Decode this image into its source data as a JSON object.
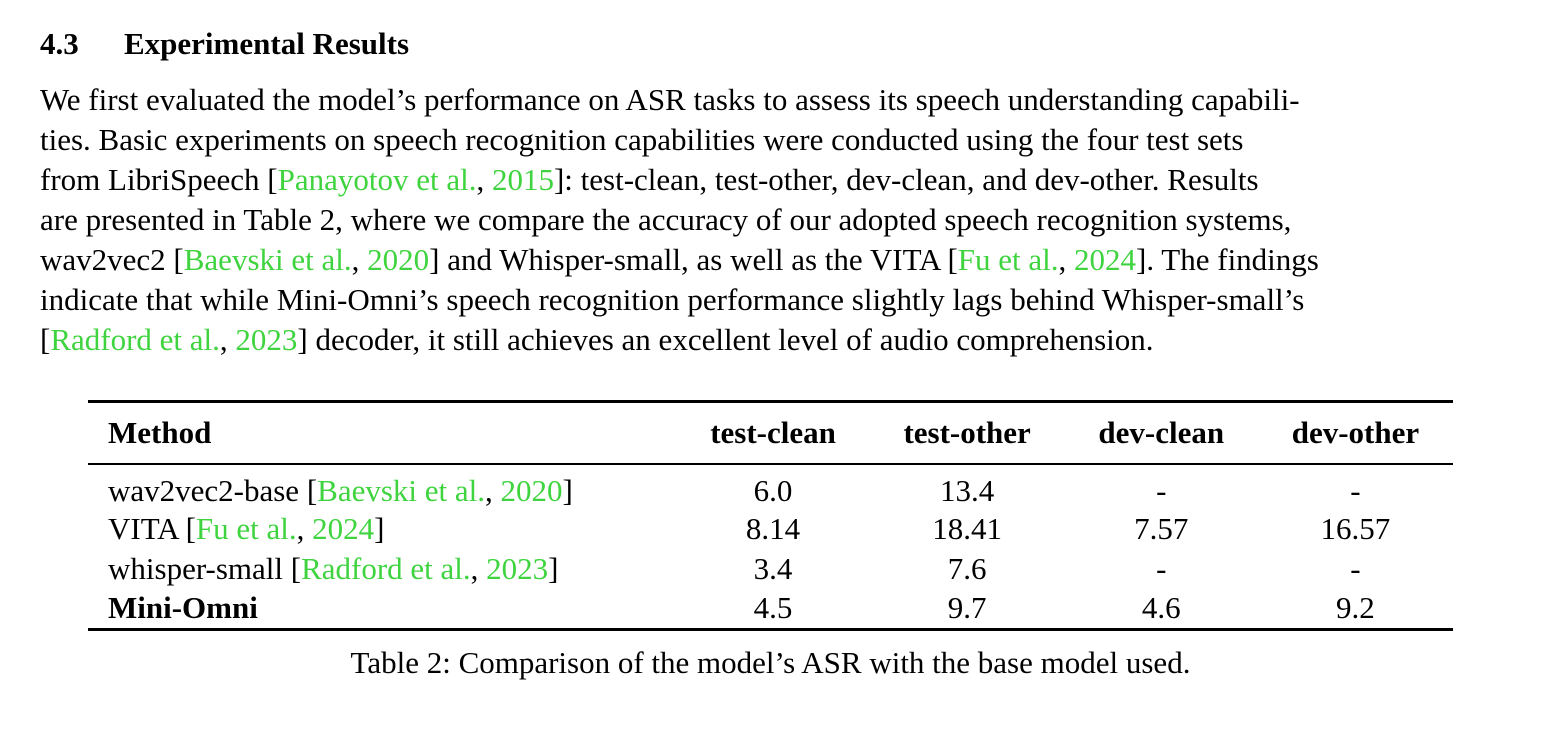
{
  "section": {
    "number": "4.3",
    "title": "Experimental Results"
  },
  "paragraph": [
    [
      {
        "t": "We first evaluated the model’s performance on ASR tasks to assess its speech understanding capabili-"
      }
    ],
    [
      {
        "t": "ties. Basic experiments on speech recognition capabilities were conducted using the four test sets"
      }
    ],
    [
      {
        "t": "from LibriSpeech ["
      },
      {
        "t": "Panayotov et al.",
        "c": 1
      },
      {
        "t": ", "
      },
      {
        "t": "2015",
        "c": 1
      },
      {
        "t": "]: test-clean, test-other, dev-clean, and dev-other. Results"
      }
    ],
    [
      {
        "t": "are presented in Table 2, where we compare the accuracy of our adopted speech recognition systems,"
      }
    ],
    [
      {
        "t": "wav2vec2 ["
      },
      {
        "t": "Baevski et al.",
        "c": 1
      },
      {
        "t": ", "
      },
      {
        "t": "2020",
        "c": 1
      },
      {
        "t": "] and Whisper-small, as well as the VITA ["
      },
      {
        "t": "Fu et al.",
        "c": 1
      },
      {
        "t": ", "
      },
      {
        "t": "2024",
        "c": 1
      },
      {
        "t": "]. The findings"
      }
    ],
    [
      {
        "t": "indicate that while Mini-Omni’s speech recognition performance slightly lags behind Whisper-small’s"
      }
    ],
    [
      {
        "t": "["
      },
      {
        "t": "Radford et al.",
        "c": 1
      },
      {
        "t": ", "
      },
      {
        "t": "2023",
        "c": 1
      },
      {
        "t": "] decoder, it still achieves an excellent level of audio comprehension."
      }
    ]
  ],
  "table": {
    "headers": [
      "Method",
      "test-clean",
      "test-other",
      "dev-clean",
      "dev-other"
    ],
    "rows": [
      {
        "method": [
          {
            "t": "wav2vec2-base ["
          },
          {
            "t": "Baevski et al.",
            "c": 1
          },
          {
            "t": ", "
          },
          {
            "t": "2020",
            "c": 1
          },
          {
            "t": "]"
          }
        ],
        "values": [
          "6.0",
          "13.4",
          "-",
          "-"
        ],
        "bold": false
      },
      {
        "method": [
          {
            "t": "VITA ["
          },
          {
            "t": "Fu et al.",
            "c": 1
          },
          {
            "t": ", "
          },
          {
            "t": "2024",
            "c": 1
          },
          {
            "t": "]"
          }
        ],
        "values": [
          "8.14",
          "18.41",
          "7.57",
          "16.57"
        ],
        "bold": false
      },
      {
        "method": [
          {
            "t": "whisper-small ["
          },
          {
            "t": "Radford et al.",
            "c": 1
          },
          {
            "t": ", "
          },
          {
            "t": "2023",
            "c": 1
          },
          {
            "t": "]"
          }
        ],
        "values": [
          "3.4",
          "7.6",
          "-",
          "-"
        ],
        "bold": false
      },
      {
        "method": [
          {
            "t": "Mini-Omni"
          }
        ],
        "values": [
          "4.5",
          "9.7",
          "4.6",
          "9.2"
        ],
        "bold": true
      }
    ]
  },
  "caption": "Table 2: Comparison of the model’s ASR with the base model used.",
  "colors": {
    "citation": "#3fd43f",
    "text": "#000000"
  }
}
